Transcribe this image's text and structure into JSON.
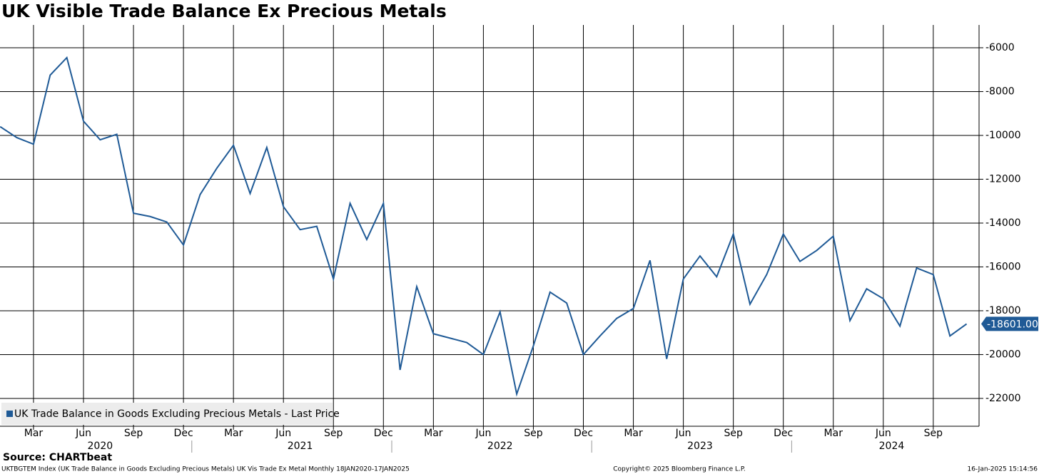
{
  "chart_data": {
    "type": "line",
    "title": "UK Visible Trade Balance Ex Precious Metals",
    "x": [
      "2020-01",
      "2020-02",
      "2020-03",
      "2020-04",
      "2020-05",
      "2020-06",
      "2020-07",
      "2020-08",
      "2020-09",
      "2020-10",
      "2020-11",
      "2020-12",
      "2021-01",
      "2021-02",
      "2021-03",
      "2021-04",
      "2021-05",
      "2021-06",
      "2021-07",
      "2021-08",
      "2021-09",
      "2021-10",
      "2021-11",
      "2021-12",
      "2022-01",
      "2022-02",
      "2022-03",
      "2022-04",
      "2022-05",
      "2022-06",
      "2022-07",
      "2022-08",
      "2022-09",
      "2022-10",
      "2022-11",
      "2022-12",
      "2023-01",
      "2023-02",
      "2023-03",
      "2023-04",
      "2023-05",
      "2023-06",
      "2023-07",
      "2023-08",
      "2023-09",
      "2023-10",
      "2023-11",
      "2023-12",
      "2024-01",
      "2024-02",
      "2024-03",
      "2024-04",
      "2024-05",
      "2024-06",
      "2024-07",
      "2024-08",
      "2024-09",
      "2024-10",
      "2024-11"
    ],
    "series": [
      {
        "name": "UK Trade Balance in Goods Excluding Precious Metals - Last Price",
        "color": "#1f5a96",
        "values": [
          -9600,
          -10100,
          -10400,
          -7250,
          -6450,
          -9350,
          -10200,
          -9950,
          -13550,
          -13700,
          -13950,
          -15000,
          -12700,
          -11500,
          -10450,
          -12650,
          -10550,
          -13250,
          -14300,
          -14150,
          -16550,
          -13100,
          -14750,
          -13100,
          -20700,
          -16900,
          -19050,
          -19250,
          -19450,
          -20000,
          -18050,
          -21800,
          -19600,
          -17150,
          -17650,
          -20000,
          -19150,
          -18350,
          -17900,
          -15700,
          -20200,
          -16550,
          -15500,
          -16450,
          -14500,
          -17700,
          -16350,
          -14500,
          -15750,
          -15250,
          -14600,
          -18450,
          -17000,
          -17450,
          -18700,
          -16050,
          -16350,
          -19150,
          -18601
        ],
        "last_label": "-18601.00"
      }
    ],
    "ylim": [
      -23270,
      -4960
    ],
    "yticks": [
      -22000,
      -20000,
      -18000,
      -16000,
      -14000,
      -12000,
      -10000,
      -8000,
      -6000
    ],
    "xticks": [
      {
        "value": "2020-03",
        "label": "Mar"
      },
      {
        "value": "2020-06",
        "label": "Jun"
      },
      {
        "value": "2020-09",
        "label": "Sep"
      },
      {
        "value": "2020-12",
        "label": "Dec"
      },
      {
        "value": "2021-03",
        "label": "Mar"
      },
      {
        "value": "2021-06",
        "label": "Jun"
      },
      {
        "value": "2021-09",
        "label": "Sep"
      },
      {
        "value": "2021-12",
        "label": "Dec"
      },
      {
        "value": "2022-03",
        "label": "Mar"
      },
      {
        "value": "2022-06",
        "label": "Jun"
      },
      {
        "value": "2022-09",
        "label": "Sep"
      },
      {
        "value": "2022-12",
        "label": "Dec"
      },
      {
        "value": "2023-03",
        "label": "Mar"
      },
      {
        "value": "2023-06",
        "label": "Jun"
      },
      {
        "value": "2023-09",
        "label": "Sep"
      },
      {
        "value": "2023-12",
        "label": "Dec"
      },
      {
        "value": "2024-03",
        "label": "Mar"
      },
      {
        "value": "2024-06",
        "label": "Jun"
      },
      {
        "value": "2024-09",
        "label": "Sep"
      }
    ],
    "years": [
      "2020",
      "2021",
      "2022",
      "2023",
      "2024"
    ],
    "grid": true,
    "legend": "bottom-left",
    "source": "Source: CHARTbeat",
    "footer_left": "UKTBGTEM Index (UK Trade Balance in Goods Excluding Precious Metals) UK Vis Trade Ex Metal  Monthly 18JAN2020-17JAN2025",
    "footer_center": "Copyright© 2025 Bloomberg Finance L.P.",
    "footer_right": "16-Jan-2025 15:14:56"
  }
}
